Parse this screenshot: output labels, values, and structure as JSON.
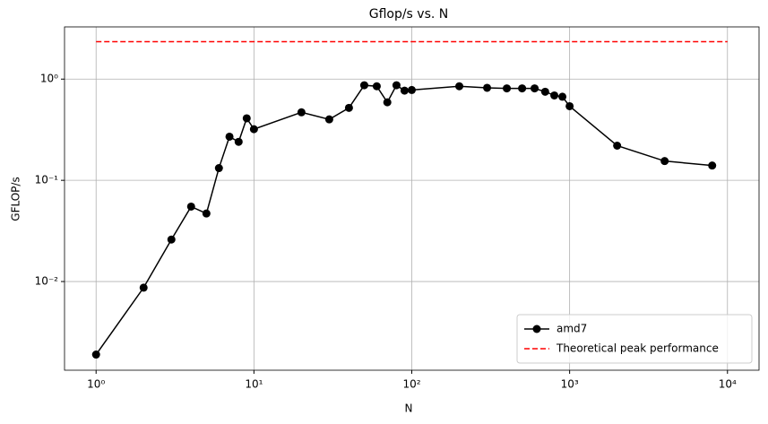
{
  "chart_data": {
    "type": "line",
    "title": "Gflop/s vs. N",
    "x_label": "N",
    "y_label": "GFLOP/s",
    "log_x": true,
    "log_y": true,
    "grid": true,
    "legend": "lower right",
    "xlim": [
      0.631,
      15849
    ],
    "ylim": [
      0.00133,
      3.28
    ],
    "xticks": [
      {
        "value": 1,
        "label": "10⁰"
      },
      {
        "value": 10,
        "label": "10¹"
      },
      {
        "value": 100,
        "label": "10²"
      },
      {
        "value": 1000,
        "label": "10³"
      },
      {
        "value": 10000,
        "label": "10⁴"
      }
    ],
    "yticks": [
      {
        "value": 0.01,
        "label": "10⁻²"
      },
      {
        "value": 0.1,
        "label": "10⁻¹"
      },
      {
        "value": 1,
        "label": "10⁰"
      }
    ],
    "series": [
      {
        "name": "amd7",
        "color": "#000000",
        "style": "solid",
        "marker": true,
        "x": [
          1,
          2,
          3,
          4,
          5,
          6,
          7,
          8,
          9,
          10,
          20,
          30,
          40,
          50,
          60,
          70,
          80,
          90,
          100,
          200,
          300,
          400,
          500,
          600,
          700,
          800,
          900,
          1000,
          2000,
          4000,
          8000
        ],
        "values": [
          0.0019,
          0.0087,
          0.026,
          0.055,
          0.047,
          0.132,
          0.27,
          0.24,
          0.41,
          0.32,
          0.47,
          0.4,
          0.52,
          0.87,
          0.85,
          0.59,
          0.87,
          0.77,
          0.78,
          0.85,
          0.82,
          0.81,
          0.81,
          0.81,
          0.75,
          0.69,
          0.67,
          0.54,
          0.22,
          0.155,
          0.14
        ]
      },
      {
        "name": "Theoretical peak performance",
        "color": "#ff0000",
        "style": "dashed",
        "marker": false,
        "x": [
          1,
          10000
        ],
        "values": [
          2.34,
          2.34
        ]
      }
    ]
  }
}
